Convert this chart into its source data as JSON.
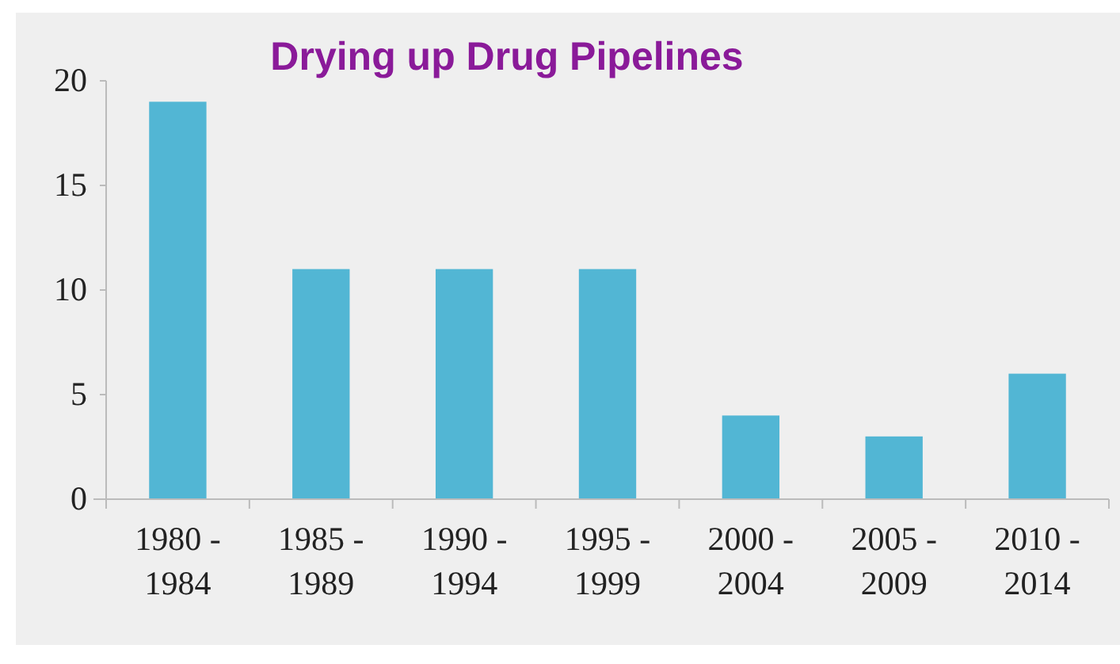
{
  "chart_data": {
    "type": "bar",
    "title": "Drying up Drug Pipelines",
    "categories": [
      "1980 - 1984",
      "1985 - 1989",
      "1990 - 1994",
      "1995 - 1999",
      "2000 - 2004",
      "2005 - 2009",
      "2010 - 2014"
    ],
    "values": [
      19,
      11,
      11,
      11,
      4,
      3,
      6
    ],
    "color": "#52b6d4",
    "ylim": [
      0,
      20
    ],
    "yticks": [
      0,
      5,
      10,
      15,
      20
    ],
    "grid": false
  }
}
